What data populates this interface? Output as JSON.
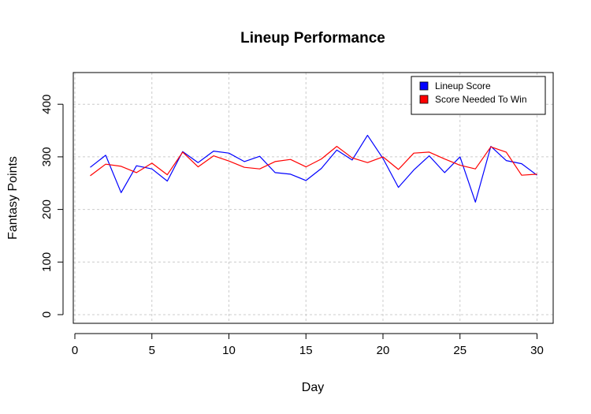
{
  "chart_data": {
    "type": "line",
    "title": "Lineup Performance",
    "xlabel": "Day",
    "ylabel": "Fantasy Points",
    "xlim": [
      0,
      30
    ],
    "ylim": [
      0,
      450
    ],
    "xticks": [
      "0",
      "5",
      "10",
      "15",
      "20",
      "25",
      "30"
    ],
    "yticks": [
      "0",
      "100",
      "200",
      "300",
      "400"
    ],
    "grid": true,
    "legend_position": "top-right",
    "x": [
      1,
      2,
      3,
      4,
      5,
      6,
      7,
      8,
      9,
      10,
      11,
      12,
      13,
      14,
      15,
      16,
      17,
      18,
      19,
      20,
      21,
      22,
      23,
      24,
      25,
      26,
      27,
      28,
      29,
      30
    ],
    "series": [
      {
        "name": "Lineup Score",
        "color": "#0000ff",
        "values": [
          280,
          303,
          232,
          283,
          277,
          254,
          310,
          289,
          311,
          307,
          291,
          301,
          270,
          267,
          255,
          278,
          313,
          294,
          341,
          297,
          242,
          275,
          302,
          270,
          300,
          214,
          320,
          293,
          287,
          265
        ]
      },
      {
        "name": "Score Needed To Win",
        "color": "#ff0000",
        "values": [
          264,
          286,
          282,
          270,
          288,
          266,
          309,
          281,
          302,
          292,
          280,
          277,
          291,
          295,
          281,
          296,
          320,
          298,
          289,
          300,
          276,
          307,
          309,
          296,
          284,
          277,
          319,
          309,
          265,
          267
        ]
      }
    ]
  }
}
